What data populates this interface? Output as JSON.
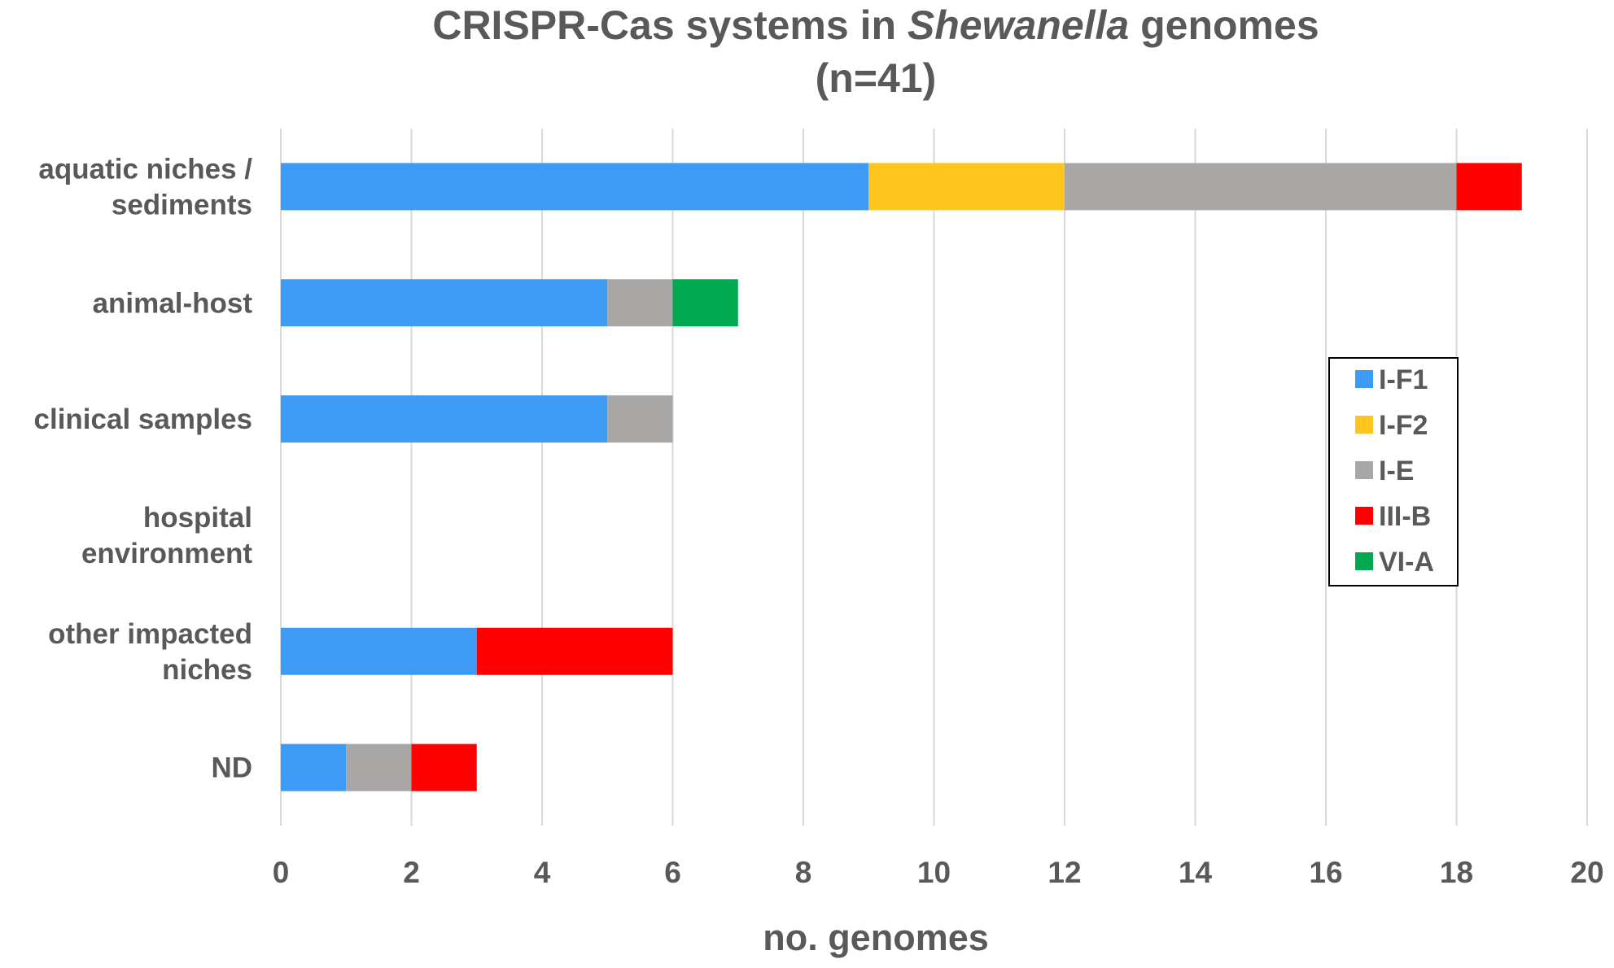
{
  "chart_data": {
    "type": "bar",
    "orientation": "horizontal",
    "stacked": true,
    "title": {
      "line1_prefix": "CRISPR-Cas systems in ",
      "line1_italic": "Shewanella",
      "line1_suffix": " genomes",
      "line2": "(n=41)"
    },
    "xlabel": "no. genomes",
    "ylabel": "",
    "xlim": [
      0,
      20
    ],
    "xticks": [
      0,
      2,
      4,
      6,
      8,
      10,
      12,
      14,
      16,
      18,
      20
    ],
    "grid": true,
    "legend_position": "right",
    "categories": [
      [
        "aquatic niches /",
        "sediments"
      ],
      [
        "animal-host"
      ],
      [
        "clinical samples"
      ],
      [
        "hospital",
        "environment"
      ],
      [
        "other impacted",
        "niches"
      ],
      [
        "ND"
      ]
    ],
    "series": [
      {
        "name": "I-F1",
        "color": "#3d9bf5",
        "values": [
          9,
          5,
          5,
          0,
          3,
          1
        ]
      },
      {
        "name": "I-F2",
        "color": "#ffc51f",
        "values": [
          3,
          0,
          0,
          0,
          0,
          0
        ]
      },
      {
        "name": "I-E",
        "color": "#a9a6a6",
        "values": [
          6,
          1,
          1,
          0,
          0,
          1
        ]
      },
      {
        "name": "III-B",
        "color": "#ff0000",
        "values": [
          1,
          0,
          0,
          0,
          3,
          1
        ]
      },
      {
        "name": "VI-A",
        "color": "#00a84f",
        "values": [
          0,
          1,
          0,
          0,
          0,
          0
        ]
      }
    ]
  }
}
